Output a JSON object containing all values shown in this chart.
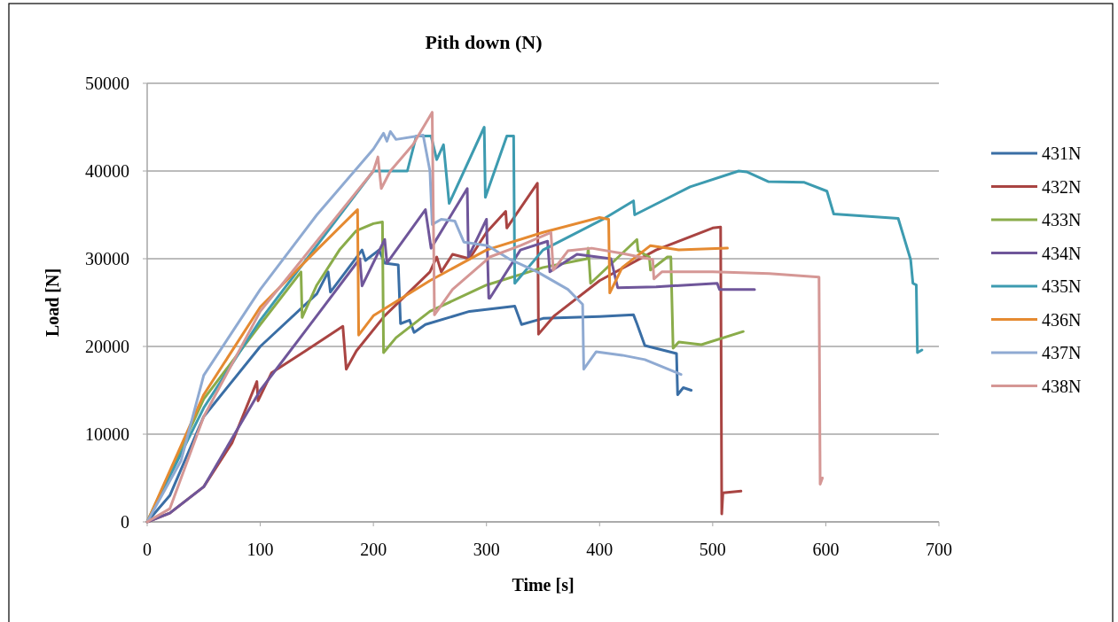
{
  "chart_data": {
    "type": "line",
    "title": "Pith down (N)",
    "xlabel": "Time [s]",
    "ylabel": "Load [N]",
    "xlim": [
      0,
      700
    ],
    "xticks": [
      0,
      100,
      200,
      300,
      400,
      500,
      600,
      700
    ],
    "ylim": [
      0,
      50000
    ],
    "yticks": [
      0,
      10000,
      20000,
      30000,
      40000,
      50000
    ],
    "grid": "y",
    "legend": "right",
    "marker": "none",
    "line_style": "solid",
    "series": [
      {
        "name": "431N",
        "color": "#3a6ea5",
        "x": [
          0,
          20,
          50,
          100,
          150,
          160,
          162,
          190,
          193,
          205,
          210,
          222,
          224,
          232,
          236,
          246,
          285,
          325,
          331,
          350,
          400,
          430,
          433,
          440,
          468,
          469,
          474,
          481
        ],
        "values": [
          0,
          3000,
          12000,
          20000,
          26000,
          28500,
          26200,
          31000,
          29800,
          31000,
          29500,
          29300,
          22600,
          23000,
          21600,
          22500,
          24000,
          24600,
          22500,
          23200,
          23400,
          23600,
          22600,
          20100,
          19200,
          14500,
          15300,
          15000
        ]
      },
      {
        "name": "432N",
        "color": "#a94442",
        "x": [
          0,
          20,
          50,
          75,
          97,
          98,
          110,
          140,
          173,
          176,
          185,
          210,
          250,
          256,
          260,
          270,
          285,
          300,
          317,
          318,
          345,
          346,
          360,
          400,
          450,
          500,
          507,
          508,
          509,
          525
        ],
        "values": [
          0,
          1000,
          4000,
          9000,
          16000,
          13800,
          17000,
          19500,
          22300,
          17400,
          19500,
          23500,
          28500,
          30200,
          28500,
          30500,
          30000,
          33000,
          35400,
          33500,
          38600,
          21400,
          23500,
          27500,
          31000,
          33500,
          33600,
          900,
          3300,
          3500
        ]
      },
      {
        "name": "433N",
        "color": "#8aac4a",
        "x": [
          0,
          50,
          100,
          136,
          137,
          150,
          170,
          185,
          200,
          208,
          209,
          220,
          250,
          300,
          350,
          389,
          390,
          392,
          433,
          434,
          444,
          445,
          460,
          463,
          465,
          470,
          490,
          527
        ],
        "values": [
          0,
          14000,
          22500,
          28500,
          23300,
          27000,
          31000,
          33200,
          34000,
          34200,
          19300,
          21000,
          24000,
          27000,
          29000,
          30000,
          31200,
          27200,
          32200,
          30900,
          30200,
          28700,
          30200,
          30200,
          19800,
          20500,
          20200,
          21700
        ]
      },
      {
        "name": "434N",
        "color": "#6f569a",
        "x": [
          0,
          20,
          50,
          100,
          150,
          188,
          190,
          210,
          212,
          246,
          251,
          283,
          284,
          300,
          302,
          303,
          330,
          354,
          356,
          380,
          410,
          416,
          450,
          504,
          506,
          537
        ],
        "values": [
          0,
          1000,
          4000,
          15000,
          23500,
          30000,
          26900,
          32200,
          29500,
          35600,
          31200,
          38000,
          30200,
          34500,
          25500,
          25500,
          31000,
          32000,
          28500,
          30500,
          30000,
          26700,
          26800,
          27200,
          26500,
          26500
        ]
      },
      {
        "name": "435N",
        "color": "#3d9bb0",
        "x": [
          0,
          50,
          100,
          200,
          230,
          238,
          251,
          256,
          262,
          267,
          298,
          299,
          318,
          324,
          325,
          350,
          403,
          430,
          431,
          480,
          523,
          530,
          549,
          581,
          601,
          607,
          664,
          675,
          677,
          680,
          681,
          685
        ],
        "values": [
          0,
          13000,
          23000,
          40000,
          40000,
          44000,
          44000,
          41300,
          43000,
          36300,
          45000,
          37000,
          44000,
          44000,
          27200,
          31000,
          34500,
          36600,
          35000,
          38200,
          40000,
          39900,
          38800,
          38700,
          37700,
          35100,
          34600,
          29900,
          27200,
          27000,
          19300,
          19600
        ]
      },
      {
        "name": "436N",
        "color": "#e58a31",
        "x": [
          0,
          50,
          100,
          150,
          186,
          187,
          200,
          250,
          300,
          350,
          400,
          408,
          409,
          420,
          445,
          470,
          513
        ],
        "values": [
          0,
          14500,
          24500,
          31000,
          35600,
          21300,
          23500,
          27500,
          31000,
          33000,
          34700,
          34500,
          26100,
          29000,
          31500,
          31000,
          31200
        ]
      },
      {
        "name": "437N",
        "color": "#8faad2",
        "x": [
          0,
          30,
          50,
          100,
          150,
          200,
          209,
          212,
          215,
          220,
          244,
          250,
          252,
          260,
          272,
          280,
          301,
          321,
          345,
          372,
          385,
          386,
          397,
          420,
          440,
          472
        ],
        "values": [
          0,
          7000,
          16700,
          26500,
          35000,
          42500,
          44300,
          43400,
          44500,
          43600,
          44100,
          40000,
          33900,
          34500,
          34300,
          31900,
          31500,
          29900,
          28500,
          26500,
          24800,
          17400,
          19400,
          19000,
          18500,
          16800
        ]
      },
      {
        "name": "438N",
        "color": "#d59795",
        "x": [
          0,
          20,
          50,
          100,
          150,
          200,
          204,
          207,
          215,
          235,
          252,
          254,
          270,
          303,
          330,
          357,
          359,
          372,
          393,
          420,
          447,
          448,
          455,
          500,
          550,
          594,
          595,
          597
        ],
        "values": [
          0,
          1500,
          12000,
          24000,
          32000,
          40000,
          41600,
          38000,
          40000,
          43000,
          46700,
          23600,
          26500,
          30200,
          31500,
          33000,
          28700,
          30900,
          31200,
          30600,
          29900,
          27700,
          28500,
          28500,
          28300,
          27900,
          4300,
          5000
        ]
      }
    ]
  }
}
